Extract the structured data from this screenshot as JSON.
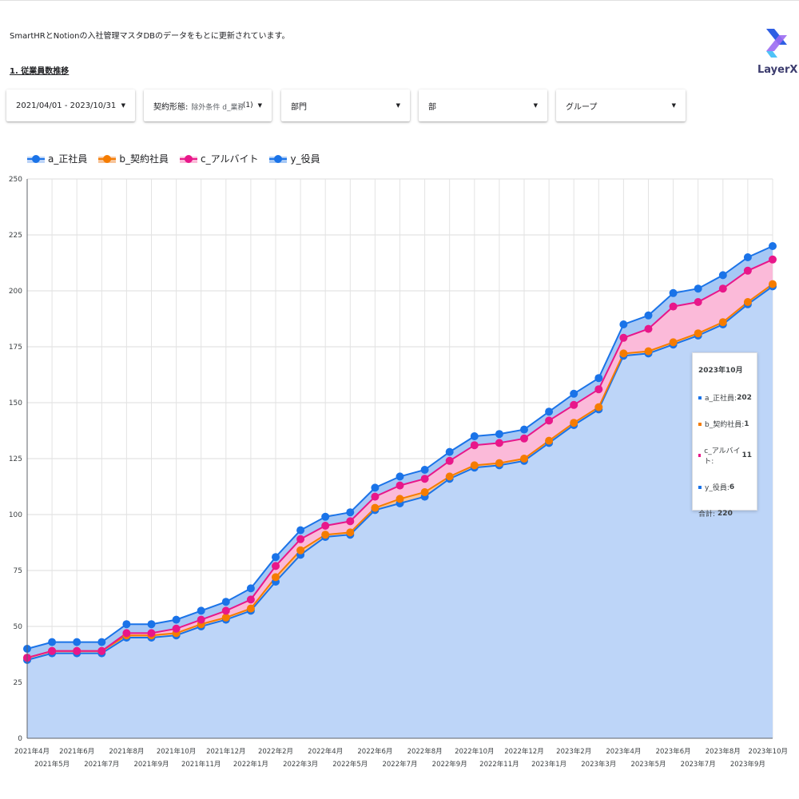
{
  "description": "SmartHRとNotionの入社管理マスタDBのデータをもとに更新されています。",
  "section_title": "1. 従業員数推移",
  "logo": {
    "name": "LayerX"
  },
  "filters": [
    {
      "label": "2021/04/01 - 2023/10/31"
    },
    {
      "label": "契約形態:",
      "sub": "除外条件 d_業務委託",
      "count": "(1)"
    },
    {
      "label": "部門"
    },
    {
      "label": "部"
    },
    {
      "label": "グループ"
    }
  ],
  "tooltip": {
    "title": "2023年10月",
    "rows": [
      {
        "label": "a_正社員:",
        "value": "202",
        "color": "#1a73e8"
      },
      {
        "label": "b_契約社員:",
        "value": "1",
        "color": "#f57c00"
      },
      {
        "label": "c_アルバイト:",
        "value": "11",
        "color": "#e8178a"
      },
      {
        "label": "y_役員:",
        "value": "6",
        "color": "#1a73e8"
      }
    ],
    "total_label": "合計:",
    "total_value": "220"
  },
  "chart_data": {
    "type": "area",
    "stacked": true,
    "categories": [
      "2021年4月",
      "2021年5月",
      "2021年6月",
      "2021年7月",
      "2021年8月",
      "2021年9月",
      "2021年10月",
      "2021年11月",
      "2021年12月",
      "2022年1月",
      "2022年2月",
      "2022年3月",
      "2022年4月",
      "2022年5月",
      "2022年6月",
      "2022年7月",
      "2022年8月",
      "2022年9月",
      "2022年10月",
      "2022年11月",
      "2022年12月",
      "2023年1月",
      "2023年2月",
      "2023年3月",
      "2023年4月",
      "2023年5月",
      "2023年6月",
      "2023年7月",
      "2023年8月",
      "2023年9月",
      "2023年10月"
    ],
    "series": [
      {
        "name": "a_正社員",
        "color": "#1a73e8",
        "fill": "#bdd5f8",
        "values": [
          35,
          38,
          38,
          38,
          45,
          45,
          46,
          50,
          53,
          57,
          70,
          82,
          90,
          91,
          102,
          105,
          108,
          116,
          121,
          122,
          124,
          132,
          140,
          147,
          171,
          172,
          176,
          180,
          185,
          194,
          202
        ]
      },
      {
        "name": "b_契約社員",
        "color": "#f57c00",
        "fill": "#f7c49a",
        "values": [
          1,
          1,
          1,
          1,
          1,
          1,
          1,
          1,
          1,
          1,
          2,
          2,
          1,
          1,
          1,
          2,
          2,
          1,
          1,
          1,
          1,
          1,
          1,
          1,
          1,
          1,
          1,
          1,
          1,
          1,
          1
        ]
      },
      {
        "name": "c_アルバイト",
        "color": "#e8178a",
        "fill": "#fbbad9",
        "values": [
          0,
          0,
          0,
          0,
          1,
          1,
          2,
          2,
          3,
          4,
          5,
          5,
          4,
          5,
          5,
          6,
          6,
          7,
          9,
          9,
          9,
          9,
          8,
          8,
          7,
          10,
          16,
          14,
          15,
          14,
          11
        ]
      },
      {
        "name": "y_役員",
        "color": "#1a73e8",
        "fill": "#a6c8f5",
        "values": [
          4,
          4,
          4,
          4,
          4,
          4,
          4,
          4,
          4,
          5,
          4,
          4,
          4,
          4,
          4,
          4,
          4,
          4,
          4,
          4,
          4,
          4,
          5,
          5,
          6,
          6,
          6,
          6,
          6,
          6,
          6
        ]
      }
    ],
    "y_ticks": [
      0,
      25,
      50,
      75,
      100,
      125,
      150,
      175,
      200,
      225,
      250
    ],
    "ylim": [
      0,
      250
    ],
    "grid": true,
    "legend": "top-left"
  }
}
